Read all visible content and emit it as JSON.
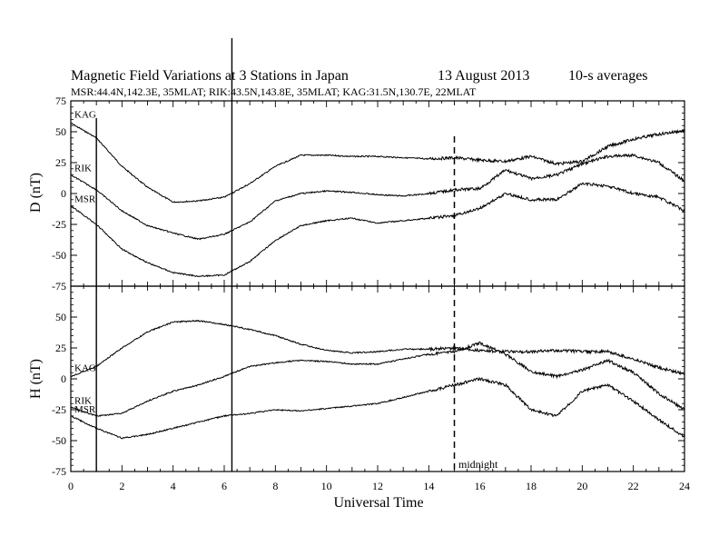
{
  "chart_data": {
    "type": "line",
    "title": "Magnetic Field Variations at 3 Stations in Japan",
    "date": "13  August  2013",
    "averaging": "10-s averages",
    "subtitle": "MSR:44.4N,142.3E, 35MLAT;  RIK:43.5N,143.8E, 35MLAT;  KAG:31.5N,130.7E, 22MLAT",
    "xlabel": "Universal Time",
    "xlim": [
      0,
      24
    ],
    "xticks": [
      "0",
      "2",
      "4",
      "6",
      "8",
      "10",
      "12",
      "14",
      "16",
      "18",
      "20",
      "22",
      "24"
    ],
    "marker_label": "midnight",
    "marker_x": 15,
    "event_times": [
      1.0,
      6.3
    ],
    "panels": [
      {
        "ylabel": "D (nT)",
        "ylim": [
          -75,
          75
        ],
        "yticks": [
          "75",
          "50",
          "25",
          "0",
          "-25",
          "-50",
          "-75"
        ],
        "series": [
          {
            "name": "KAG",
            "x": [
              0,
              1,
              2,
              3,
              4,
              5,
              6,
              7,
              8,
              9,
              10,
              11,
              12,
              13,
              14,
              15,
              16,
              17,
              18,
              19,
              20,
              21,
              22,
              23,
              24
            ],
            "values": [
              57,
              45,
              22,
              5,
              -7,
              -6,
              -3,
              8,
              22,
              31,
              31,
              30,
              30,
              29,
              28,
              29,
              27,
              26,
              30,
              24,
              26,
              38,
              44,
              48,
              51
            ]
          },
          {
            "name": "RIK",
            "x": [
              0,
              1,
              2,
              3,
              4,
              5,
              6,
              7,
              8,
              9,
              10,
              11,
              12,
              13,
              14,
              15,
              16,
              17,
              18,
              19,
              20,
              21,
              22,
              23,
              24
            ],
            "values": [
              15,
              3,
              -14,
              -26,
              -32,
              -37,
              -33,
              -23,
              -6,
              0,
              2,
              1,
              -1,
              -2,
              0,
              3,
              4,
              19,
              12,
              15,
              24,
              30,
              31,
              25,
              10
            ]
          },
          {
            "name": "MSR",
            "x": [
              0,
              1,
              2,
              3,
              4,
              5,
              6,
              7,
              8,
              9,
              10,
              11,
              12,
              13,
              14,
              15,
              16,
              17,
              18,
              19,
              20,
              21,
              22,
              23,
              24
            ],
            "values": [
              -10,
              -25,
              -45,
              -56,
              -64,
              -67,
              -66,
              -55,
              -38,
              -26,
              -22,
              -20,
              -24,
              -22,
              -20,
              -18,
              -12,
              0,
              -5,
              -5,
              8,
              6,
              0,
              -3,
              -14
            ]
          }
        ]
      },
      {
        "ylabel": "H (nT)",
        "ylim": [
          -75,
          75
        ],
        "yticks": [
          "75",
          "50",
          "25",
          "0",
          "-25",
          "-50",
          "-75"
        ],
        "series": [
          {
            "name": "KAG",
            "x": [
              0,
              1,
              2,
              3,
              4,
              5,
              6,
              7,
              8,
              9,
              10,
              11,
              12,
              13,
              14,
              15,
              16,
              17,
              18,
              19,
              20,
              21,
              22,
              23,
              24
            ],
            "values": [
              2,
              10,
              25,
              38,
              46,
              47,
              44,
              40,
              35,
              28,
              23,
              21,
              22,
              24,
              24,
              25,
              23,
              22,
              22,
              23,
              22,
              22,
              16,
              9,
              4
            ]
          },
          {
            "name": "RIK",
            "x": [
              0,
              1,
              2,
              3,
              4,
              5,
              6,
              7,
              8,
              9,
              10,
              11,
              12,
              13,
              14,
              15,
              16,
              17,
              18,
              19,
              20,
              21,
              22,
              23,
              24
            ],
            "values": [
              -23,
              -30,
              -28,
              -18,
              -10,
              -5,
              2,
              10,
              13,
              15,
              14,
              12,
              12,
              16,
              20,
              22,
              29,
              20,
              6,
              2,
              7,
              15,
              5,
              -12,
              -25
            ]
          },
          {
            "name": "MSR",
            "x": [
              0,
              1,
              2,
              3,
              4,
              5,
              6,
              7,
              8,
              9,
              10,
              11,
              12,
              13,
              14,
              15,
              16,
              17,
              18,
              19,
              20,
              21,
              22,
              23,
              24
            ],
            "values": [
              -30,
              -40,
              -48,
              -45,
              -40,
              -35,
              -30,
              -28,
              -25,
              -26,
              -24,
              -22,
              -20,
              -15,
              -10,
              -5,
              0,
              -5,
              -25,
              -30,
              -10,
              -5,
              -18,
              -33,
              -47
            ]
          }
        ]
      }
    ]
  }
}
